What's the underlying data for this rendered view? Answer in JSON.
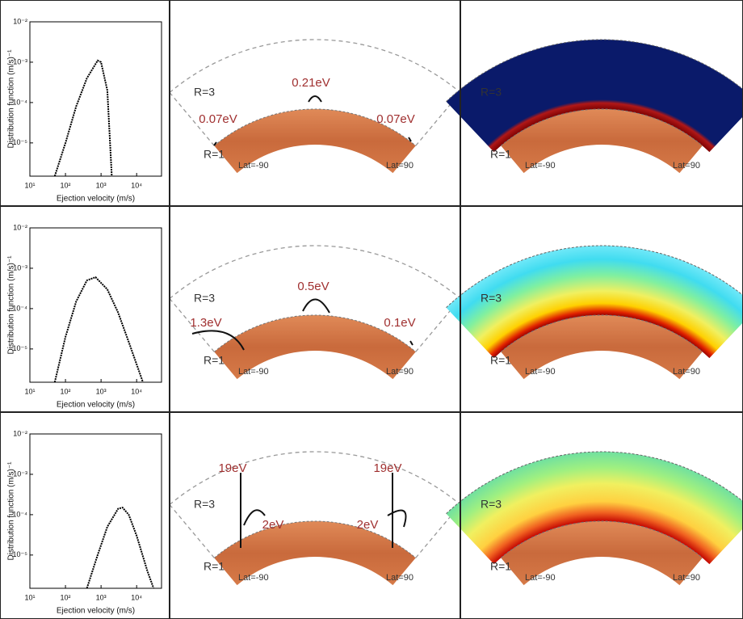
{
  "chart_data": [
    {
      "type": "line",
      "xlabel": "Ejection velocity (m/s)",
      "ylabel": "Distribution function (m/s)⁻¹",
      "xlog": true,
      "ylog": true,
      "color": "#000000",
      "xlim": [
        10,
        50000
      ],
      "ylim": [
        1.5e-06,
        0.01
      ],
      "xticks": [
        {
          "value": 10,
          "label": "10¹"
        },
        {
          "value": 100,
          "label": "10²"
        },
        {
          "value": 1000,
          "label": "10³"
        },
        {
          "value": 10000,
          "label": "10⁴"
        }
      ],
      "yticks": [
        {
          "value": 0.01,
          "label": "10⁻²"
        },
        {
          "value": 0.001,
          "label": "10⁻³"
        },
        {
          "value": 0.0001,
          "label": "10⁻⁴"
        },
        {
          "value": 1e-05,
          "label": "10⁻⁵"
        }
      ],
      "x": [
        50,
        100,
        200,
        400,
        800,
        1000,
        1500,
        2000
      ],
      "values": [
        1.5e-06,
        1e-05,
        8e-05,
        0.0004,
        0.0011,
        0.001,
        0.0002,
        1.5e-06
      ]
    },
    {
      "type": "line",
      "xlabel": "Ejection velocity (m/s)",
      "ylabel": "Distribution function (m/s)⁻¹",
      "xlog": true,
      "ylog": true,
      "color": "#000000",
      "xlim": [
        10,
        50000
      ],
      "ylim": [
        1.5e-06,
        0.01
      ],
      "xticks": [
        {
          "value": 10,
          "label": "10¹"
        },
        {
          "value": 100,
          "label": "10²"
        },
        {
          "value": 1000,
          "label": "10³"
        },
        {
          "value": 10000,
          "label": "10⁴"
        }
      ],
      "yticks": [
        {
          "value": 0.01,
          "label": "10⁻²"
        },
        {
          "value": 0.001,
          "label": "10⁻³"
        },
        {
          "value": 0.0001,
          "label": "10⁻⁴"
        },
        {
          "value": 1e-05,
          "label": "10⁻⁵"
        }
      ],
      "x": [
        50,
        100,
        200,
        400,
        700,
        1500,
        3000,
        6000,
        15000
      ],
      "values": [
        1.5e-06,
        2e-05,
        0.00015,
        0.0005,
        0.0006,
        0.0003,
        8e-05,
        1.5e-05,
        1.5e-06
      ]
    },
    {
      "type": "line",
      "xlabel": "Ejection velocity (m/s)",
      "ylabel": "Distribution function (m/s)⁻¹",
      "xlog": true,
      "ylog": true,
      "color": "#000000",
      "xlim": [
        10,
        50000
      ],
      "ylim": [
        1.5e-06,
        0.01
      ],
      "xticks": [
        {
          "value": 10,
          "label": "10¹"
        },
        {
          "value": 100,
          "label": "10²"
        },
        {
          "value": 1000,
          "label": "10³"
        },
        {
          "value": 10000,
          "label": "10⁴"
        }
      ],
      "yticks": [
        {
          "value": 0.01,
          "label": "10⁻²"
        },
        {
          "value": 0.001,
          "label": "10⁻³"
        },
        {
          "value": 0.0001,
          "label": "10⁻⁴"
        },
        {
          "value": 1e-05,
          "label": "10⁻⁵"
        }
      ],
      "x": [
        400,
        800,
        1500,
        3000,
        4000,
        6000,
        10000,
        20000,
        30000
      ],
      "values": [
        1.5e-06,
        1e-05,
        5e-05,
        0.00014,
        0.00015,
        0.0001,
        3e-05,
        4e-06,
        1.5e-06
      ]
    }
  ],
  "diagrams": [
    {
      "r_outer_label": "R=3",
      "r_inner_label": "R=1",
      "lat_left": "Lat=-90",
      "lat_right": "Lat=90",
      "energies": [
        "0.07eV",
        "0.21eV",
        "0.07eV"
      ]
    },
    {
      "r_outer_label": "R=3",
      "r_inner_label": "R=1",
      "lat_left": "Lat=-90",
      "lat_right": "Lat=90",
      "energies": [
        "1.3eV",
        "0.5eV",
        "0.1eV"
      ]
    },
    {
      "r_outer_label": "R=3",
      "r_inner_label": "R=1",
      "lat_left": "Lat=-90",
      "lat_right": "Lat=90",
      "energies": [
        "19eV",
        "2eV",
        "2eV",
        "19eV"
      ]
    }
  ],
  "maps": [
    {
      "r_outer_label": "R=3",
      "r_inner_label": "R=1",
      "lat_left": "Lat=-90",
      "lat_right": "Lat=90"
    },
    {
      "r_outer_label": "R=3",
      "r_inner_label": "R=1",
      "lat_left": "Lat=-90",
      "lat_right": "Lat=90"
    },
    {
      "r_outer_label": "R=3",
      "r_inner_label": "R=1",
      "lat_left": "Lat=-90",
      "lat_right": "Lat=90"
    }
  ]
}
